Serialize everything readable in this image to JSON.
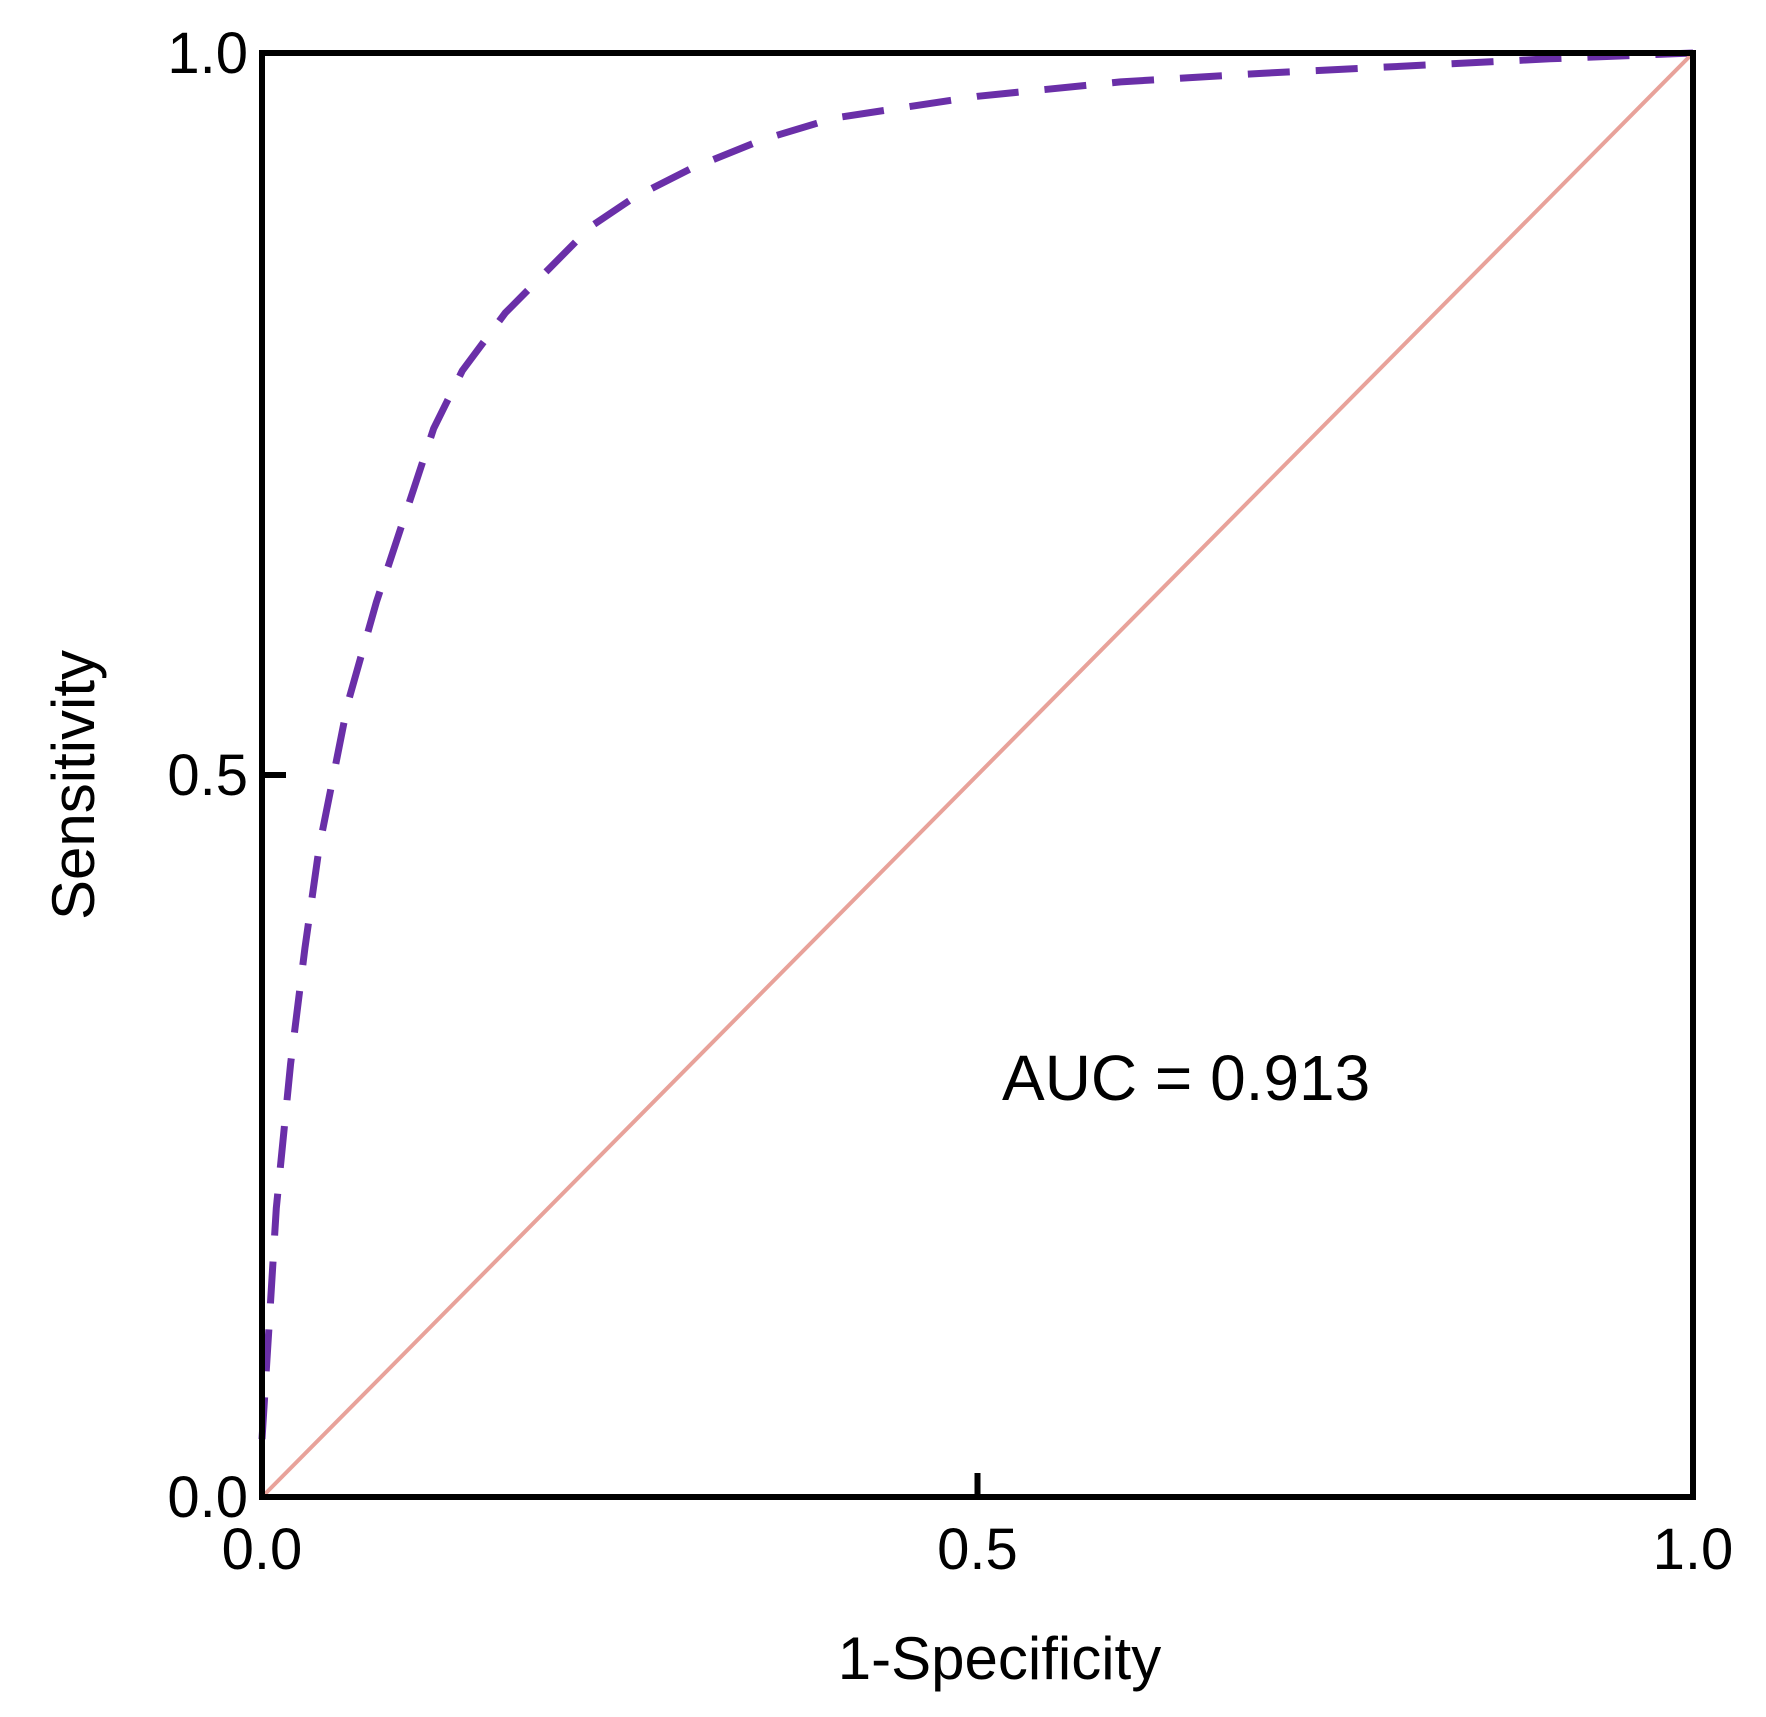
{
  "chart_data": {
    "type": "line",
    "xlabel": "1-Specificity",
    "ylabel": "Sensitivity",
    "xlim": [
      0.0,
      1.0
    ],
    "ylim": [
      0.0,
      1.0
    ],
    "x_ticks": [
      "0.0",
      "0.5",
      "1.0"
    ],
    "y_ticks": [
      "0.0",
      "0.5",
      "1.0"
    ],
    "grid": false,
    "annotation": "AUC = 0.913",
    "series": [
      {
        "role": "roc-curve",
        "style": "dashed",
        "color": "#6a2fa8",
        "points": [
          [
            0.0,
            0.04
          ],
          [
            0.005,
            0.12
          ],
          [
            0.01,
            0.2
          ],
          [
            0.02,
            0.3
          ],
          [
            0.03,
            0.38
          ],
          [
            0.04,
            0.45
          ],
          [
            0.05,
            0.5
          ],
          [
            0.06,
            0.55
          ],
          [
            0.08,
            0.62
          ],
          [
            0.1,
            0.68
          ],
          [
            0.12,
            0.74
          ],
          [
            0.14,
            0.78
          ],
          [
            0.17,
            0.82
          ],
          [
            0.2,
            0.85
          ],
          [
            0.23,
            0.88
          ],
          [
            0.26,
            0.9
          ],
          [
            0.3,
            0.92
          ],
          [
            0.35,
            0.94
          ],
          [
            0.4,
            0.955
          ],
          [
            0.5,
            0.97
          ],
          [
            0.6,
            0.98
          ],
          [
            0.7,
            0.986
          ],
          [
            0.8,
            0.991
          ],
          [
            0.9,
            0.996
          ],
          [
            1.0,
            1.0
          ]
        ]
      },
      {
        "role": "reference-line",
        "style": "solid",
        "color": "#e8a29a",
        "points": [
          [
            0.0,
            0.0
          ],
          [
            1.0,
            1.0
          ]
        ]
      }
    ]
  }
}
